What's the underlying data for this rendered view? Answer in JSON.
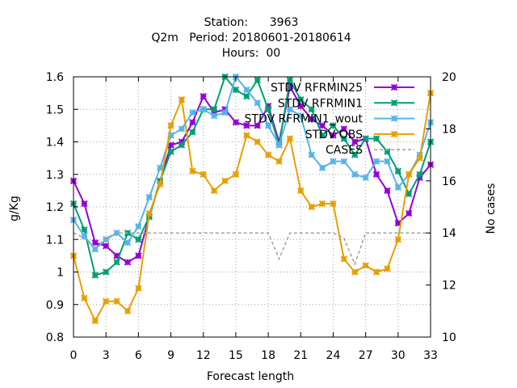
{
  "chart_data": {
    "type": "line",
    "title_lines": [
      "Station:      3963",
      "Q2m   Period: 20180601-20180614",
      "Hours:  00"
    ],
    "xlabel": "Forecast length",
    "ylabel": "g/Kg",
    "y2label": "No cases",
    "xlim": [
      0,
      33
    ],
    "ylim": [
      0.8,
      1.6
    ],
    "y2lim": [
      10,
      20
    ],
    "xticks": [
      0,
      3,
      6,
      9,
      12,
      15,
      18,
      21,
      24,
      27,
      30,
      33
    ],
    "yticks": [
      "0.8",
      "0.9",
      "1",
      "1.1",
      "1.2",
      "1.3",
      "1.4",
      "1.5",
      "1.6"
    ],
    "y2ticks": [
      "10",
      "12",
      "14",
      "16",
      "18",
      "20"
    ],
    "grid": true,
    "legend_position": "top-right",
    "x": [
      0,
      1,
      2,
      3,
      4,
      5,
      6,
      7,
      8,
      9,
      10,
      11,
      12,
      13,
      14,
      15,
      16,
      17,
      18,
      19,
      20,
      21,
      22,
      23,
      24,
      25,
      26,
      27,
      28,
      29,
      30,
      31,
      32,
      33
    ],
    "series": [
      {
        "name": "STDV RFRMIN25",
        "color": "#9400d3",
        "axis": "y",
        "marker": "x",
        "values": [
          1.28,
          1.21,
          1.09,
          1.08,
          1.05,
          1.03,
          1.05,
          1.17,
          1.28,
          1.39,
          1.4,
          1.46,
          1.54,
          1.49,
          1.5,
          1.46,
          1.45,
          1.45,
          1.51,
          1.4,
          1.57,
          1.51,
          1.47,
          1.45,
          1.42,
          1.44,
          1.4,
          1.41,
          1.3,
          1.25,
          1.15,
          1.18,
          1.29,
          1.33
        ]
      },
      {
        "name": "STDV RFRMIN1",
        "color": "#009e73",
        "axis": "y",
        "marker": "x",
        "values": [
          1.21,
          1.13,
          0.99,
          1.0,
          1.03,
          1.12,
          1.1,
          1.17,
          1.28,
          1.37,
          1.39,
          1.43,
          1.5,
          1.5,
          1.6,
          1.56,
          1.54,
          1.59,
          1.5,
          1.39,
          1.59,
          1.53,
          1.5,
          1.42,
          1.45,
          1.41,
          1.36,
          1.41,
          1.41,
          1.37,
          1.31,
          1.24,
          1.3,
          1.4
        ]
      },
      {
        "name": "STDV RFRMIN1_wout",
        "color": "#56b4e9",
        "axis": "y",
        "marker": "x",
        "values": [
          1.16,
          1.11,
          1.07,
          1.1,
          1.12,
          1.09,
          1.14,
          1.23,
          1.32,
          1.42,
          1.44,
          1.49,
          1.5,
          1.48,
          1.49,
          1.6,
          1.56,
          1.52,
          1.45,
          1.39,
          1.5,
          1.48,
          1.36,
          1.32,
          1.34,
          1.34,
          1.3,
          1.29,
          1.34,
          1.34,
          1.26,
          1.3,
          1.36,
          1.46
        ]
      },
      {
        "name": "STDV OBS",
        "color": "#e69f00",
        "axis": "y",
        "marker": "x",
        "values": [
          1.05,
          0.92,
          0.85,
          0.91,
          0.91,
          0.88,
          0.95,
          1.18,
          1.27,
          1.45,
          1.53,
          1.31,
          1.3,
          1.25,
          1.28,
          1.3,
          1.42,
          1.4,
          1.36,
          1.34,
          1.41,
          1.25,
          1.2,
          1.21,
          1.21,
          1.04,
          1.0,
          1.02,
          1.0,
          1.01,
          1.1,
          1.3,
          1.35,
          1.55
        ]
      },
      {
        "name": "CASES",
        "color": "#a0a0a0",
        "axis": "y2",
        "marker": "none",
        "dashed": true,
        "values": [
          14,
          13.8,
          13.4,
          13.8,
          14,
          14,
          14,
          14,
          14,
          14,
          14,
          14,
          14,
          14,
          14,
          14,
          14,
          14,
          14,
          13,
          14,
          14,
          14,
          14,
          14,
          13.8,
          12.8,
          14,
          14,
          14,
          14,
          14,
          14,
          14
        ]
      }
    ],
    "legend_inset_entries": [
      "STDV RFRMIN25",
      "STDV RFRMIN1",
      "STDV RFRMIN1_wout",
      "STDV OBS",
      "CASES"
    ]
  }
}
